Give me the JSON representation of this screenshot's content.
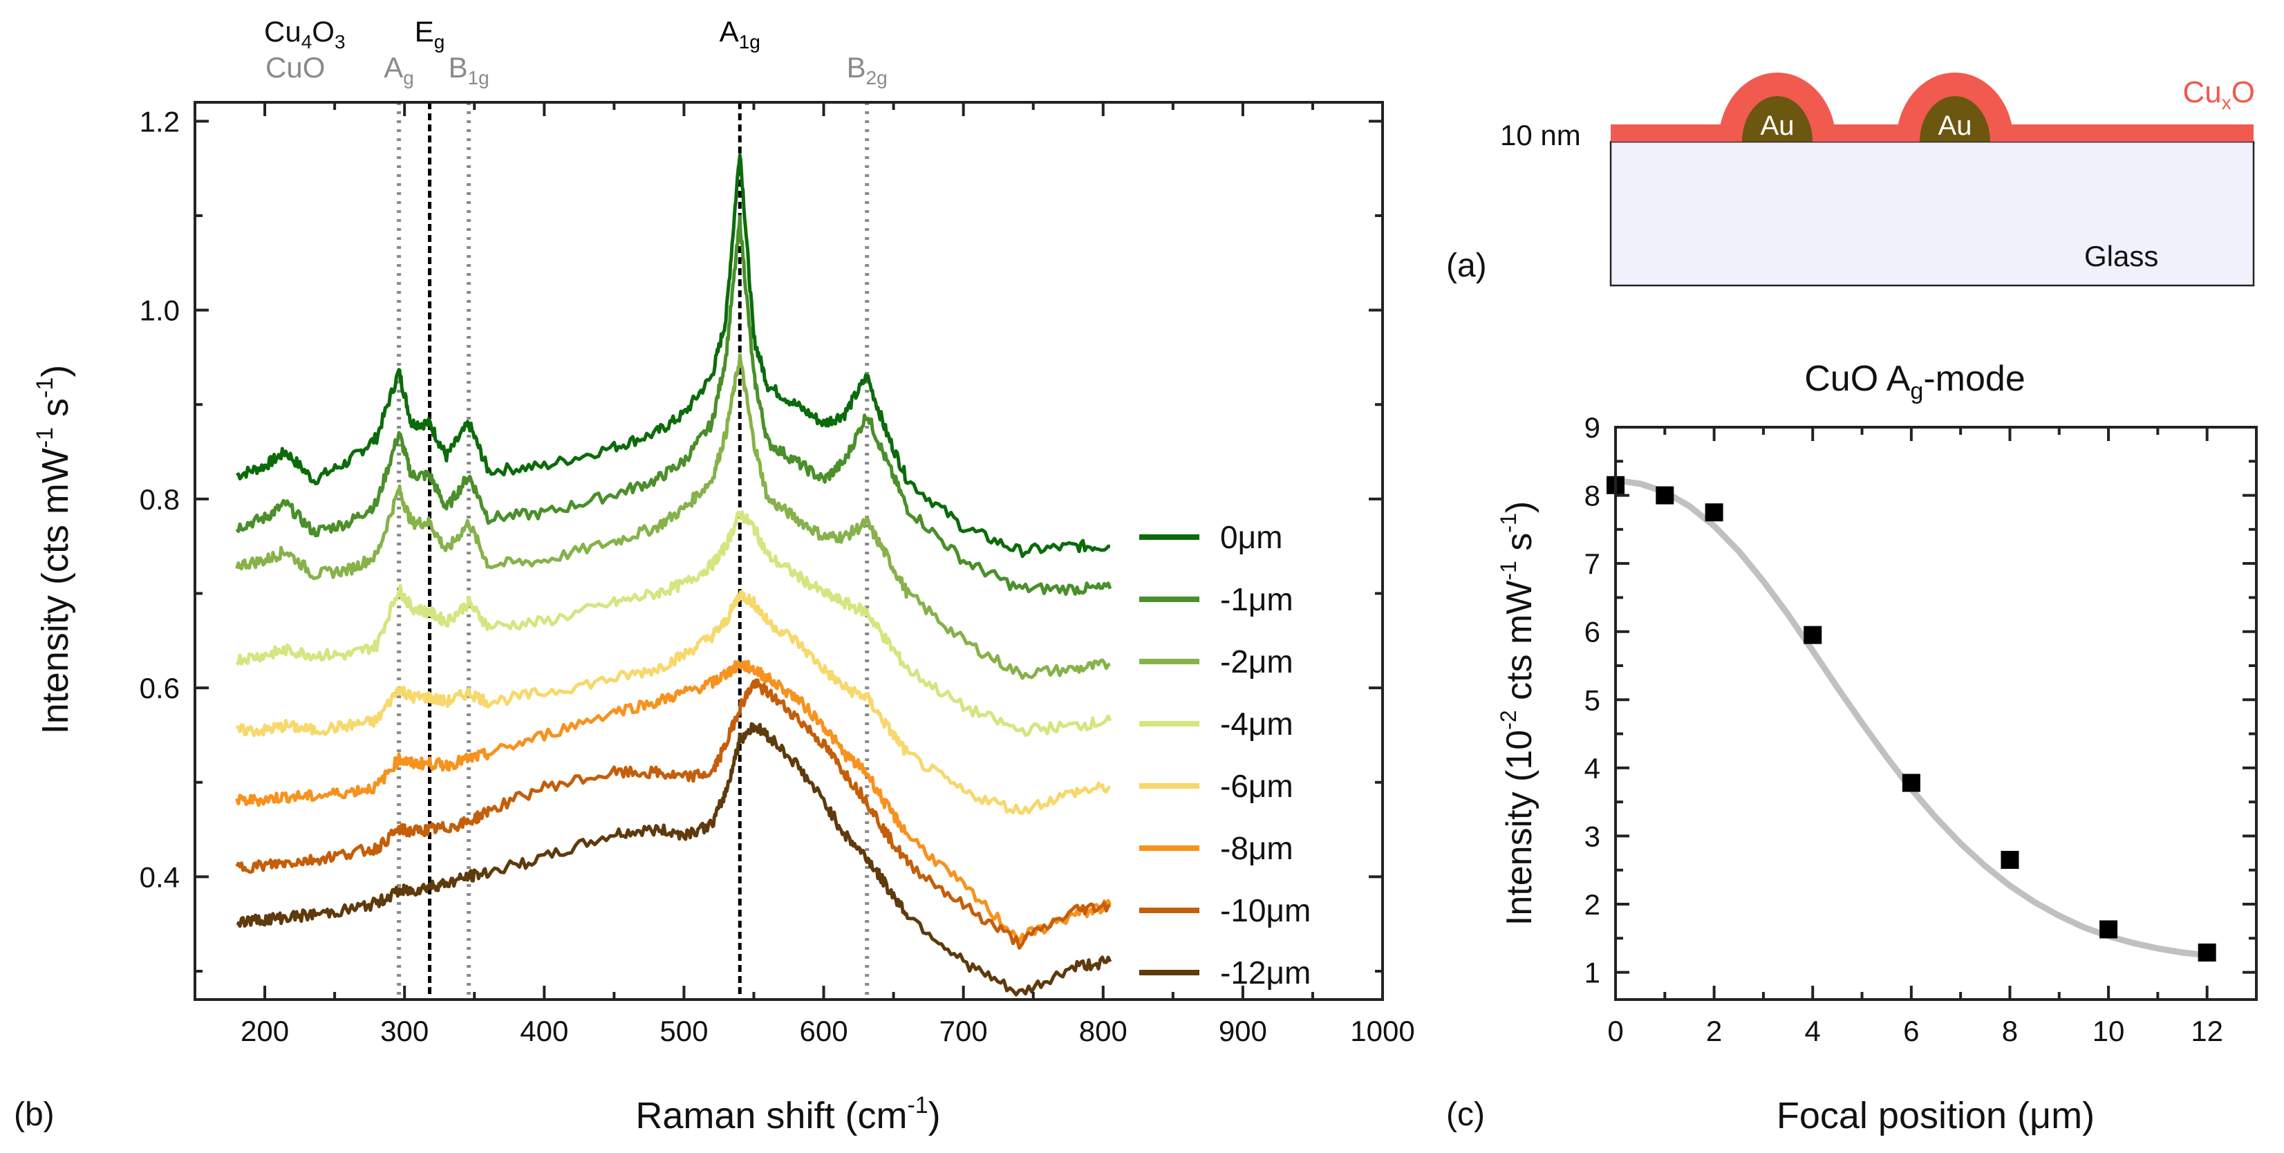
{
  "colors": {
    "series": [
      "#0b6b0b",
      "#4a8f2a",
      "#86b24a",
      "#d4e680",
      "#f7d86a",
      "#f7921e",
      "#c45e0a",
      "#5e3a0c"
    ],
    "cuo_marker": "#8a8a8a",
    "other_marker": "#000000",
    "cuxo": "#f15a4f",
    "au": "#6b5710",
    "glass": "#f0f1fb",
    "fit_line": "#c0c0c0"
  },
  "panels": {
    "a": {
      "label": "(a)",
      "thickness": "10 nm",
      "glass": "Glass",
      "au": [
        "Au",
        "Au"
      ],
      "cuxo": {
        "main": "Cu",
        "sub": "x",
        "tail": "O"
      }
    },
    "b": {
      "label": "(b)"
    },
    "c": {
      "label": "(c)"
    }
  },
  "chart_data": [
    {
      "id": "raman",
      "type": "line",
      "xlabel": "Raman shift (cm",
      "xlabel_sup": "-1",
      "xlabel_tail": ")",
      "ylabel": "Intensity (cts mW",
      "ylabel_sup1": "-1",
      "ylabel_mid": " s",
      "ylabel_sup2": "-1",
      "ylabel_tail": ")",
      "xlim": [
        150,
        1000
      ],
      "ylim": [
        0.27,
        1.22
      ],
      "xticks": [
        200,
        300,
        400,
        500,
        600,
        700,
        800,
        900,
        1000
      ],
      "yticks": [
        0.4,
        0.6,
        0.8,
        1.0,
        1.2
      ],
      "ytick_labels": [
        "0.4",
        "0.6",
        "0.8",
        "1.0",
        "1.2"
      ],
      "markers": [
        {
          "x": 296,
          "style": "dotted",
          "label": "A",
          "sub": "g",
          "group": "CuO"
        },
        {
          "x": 318,
          "style": "dashed",
          "label": "E",
          "sub": "g",
          "group": "Cu4O3"
        },
        {
          "x": 346,
          "style": "dotted",
          "label": "B",
          "sub": "1g",
          "group": "CuO"
        },
        {
          "x": 540,
          "style": "dashed",
          "label": "A",
          "sub": "1g",
          "group": "Cu4O3"
        },
        {
          "x": 631,
          "style": "dotted",
          "label": "B",
          "sub": "2g",
          "group": "CuO"
        }
      ],
      "groups": {
        "cu4o3": {
          "a": "Cu",
          "s1": "4",
          "b": "O",
          "s2": "3"
        },
        "cuo": "CuO"
      },
      "x": [
        180,
        200,
        215,
        235,
        260,
        280,
        296,
        305,
        318,
        330,
        346,
        360,
        400,
        450,
        480,
        500,
        520,
        530,
        540,
        550,
        560,
        580,
        600,
        615,
        631,
        645,
        660,
        700,
        740,
        780,
        805
      ],
      "series": [
        {
          "name": "0μm",
          "values": [
            0.825,
            0.835,
            0.85,
            0.82,
            0.84,
            0.865,
            0.935,
            0.88,
            0.88,
            0.845,
            0.88,
            0.83,
            0.835,
            0.855,
            0.87,
            0.89,
            0.93,
            0.99,
            1.17,
            0.97,
            0.92,
            0.9,
            0.88,
            0.89,
            0.93,
            0.87,
            0.82,
            0.77,
            0.745,
            0.75,
            0.75
          ]
        },
        {
          "name": "-1μm",
          "values": [
            0.77,
            0.78,
            0.795,
            0.765,
            0.775,
            0.795,
            0.87,
            0.825,
            0.825,
            0.79,
            0.825,
            0.78,
            0.785,
            0.805,
            0.82,
            0.84,
            0.88,
            0.95,
            1.095,
            0.93,
            0.86,
            0.84,
            0.82,
            0.84,
            0.89,
            0.84,
            0.79,
            0.735,
            0.705,
            0.705,
            0.705
          ]
        },
        {
          "name": "-2μm",
          "values": [
            0.73,
            0.735,
            0.745,
            0.72,
            0.725,
            0.74,
            0.81,
            0.775,
            0.775,
            0.745,
            0.775,
            0.73,
            0.735,
            0.755,
            0.77,
            0.79,
            0.82,
            0.87,
            0.95,
            0.86,
            0.8,
            0.78,
            0.76,
            0.76,
            0.775,
            0.74,
            0.7,
            0.65,
            0.615,
            0.62,
            0.625
          ]
        },
        {
          "name": "-4μm",
          "values": [
            0.63,
            0.635,
            0.64,
            0.635,
            0.635,
            0.645,
            0.705,
            0.685,
            0.68,
            0.67,
            0.69,
            0.665,
            0.67,
            0.69,
            0.7,
            0.71,
            0.73,
            0.75,
            0.785,
            0.77,
            0.74,
            0.72,
            0.7,
            0.69,
            0.68,
            0.65,
            0.62,
            0.58,
            0.555,
            0.56,
            0.565
          ]
        },
        {
          "name": "-6μm",
          "values": [
            0.555,
            0.555,
            0.56,
            0.555,
            0.56,
            0.565,
            0.6,
            0.59,
            0.59,
            0.585,
            0.595,
            0.585,
            0.595,
            0.61,
            0.62,
            0.635,
            0.655,
            0.67,
            0.7,
            0.69,
            0.67,
            0.65,
            0.62,
            0.6,
            0.59,
            0.56,
            0.53,
            0.49,
            0.47,
            0.49,
            0.495
          ]
        },
        {
          "name": "-8μm",
          "values": [
            0.48,
            0.482,
            0.485,
            0.485,
            0.49,
            0.495,
            0.525,
            0.52,
            0.52,
            0.518,
            0.525,
            0.53,
            0.55,
            0.575,
            0.585,
            0.595,
            0.605,
            0.615,
            0.625,
            0.62,
            0.61,
            0.59,
            0.56,
            0.53,
            0.51,
            0.475,
            0.445,
            0.39,
            0.335,
            0.36,
            0.37
          ]
        },
        {
          "name": "-10μm",
          "values": [
            0.41,
            0.412,
            0.415,
            0.418,
            0.425,
            0.43,
            0.45,
            0.448,
            0.45,
            0.452,
            0.458,
            0.47,
            0.495,
            0.51,
            0.51,
            0.505,
            0.51,
            0.54,
            0.58,
            0.605,
            0.595,
            0.57,
            0.54,
            0.51,
            0.48,
            0.445,
            0.415,
            0.37,
            0.33,
            0.365,
            0.37
          ]
        },
        {
          "name": "-12μm",
          "values": [
            0.352,
            0.355,
            0.357,
            0.36,
            0.365,
            0.372,
            0.385,
            0.385,
            0.39,
            0.393,
            0.4,
            0.405,
            0.42,
            0.445,
            0.45,
            0.445,
            0.455,
            0.49,
            0.545,
            0.56,
            0.55,
            0.52,
            0.48,
            0.445,
            0.42,
            0.39,
            0.36,
            0.31,
            0.275,
            0.305,
            0.31
          ]
        }
      ]
    },
    {
      "id": "cuo-ag",
      "type": "scatter",
      "title_a": "CuO  A",
      "title_sub": "g",
      "title_b": "-mode",
      "xlabel": "Focal position (μm)",
      "ylabel": "Intensity (10",
      "ylabel_sup1": "-2",
      "ylabel_mid": " cts mW",
      "ylabel_sup2": "-1",
      "ylabel_mid2": " s",
      "ylabel_sup3": "-1",
      "ylabel_tail": ")",
      "xlim": [
        0,
        13
      ],
      "ylim": [
        0.6,
        9.0
      ],
      "xticks": [
        0,
        2,
        4,
        6,
        8,
        10,
        12
      ],
      "yticks": [
        1,
        2,
        3,
        4,
        5,
        6,
        7,
        8,
        9
      ],
      "points": {
        "x": [
          0,
          1,
          2,
          4,
          6,
          8,
          10,
          12
        ],
        "y": [
          8.15,
          8.0,
          7.75,
          5.95,
          3.78,
          2.65,
          1.63,
          1.29
        ]
      },
      "fit": {
        "x": [
          0,
          0.5,
          1,
          1.5,
          2,
          2.5,
          3,
          3.5,
          4,
          4.5,
          5,
          5.5,
          6,
          6.5,
          7,
          7.5,
          8,
          8.5,
          9,
          9.5,
          10,
          10.5,
          11,
          11.5,
          12
        ],
        "y": [
          8.22,
          8.17,
          8.05,
          7.84,
          7.55,
          7.18,
          6.74,
          6.25,
          5.72,
          5.18,
          4.66,
          4.16,
          3.69,
          3.27,
          2.89,
          2.56,
          2.27,
          2.03,
          1.83,
          1.66,
          1.53,
          1.43,
          1.35,
          1.29,
          1.25
        ]
      }
    }
  ]
}
